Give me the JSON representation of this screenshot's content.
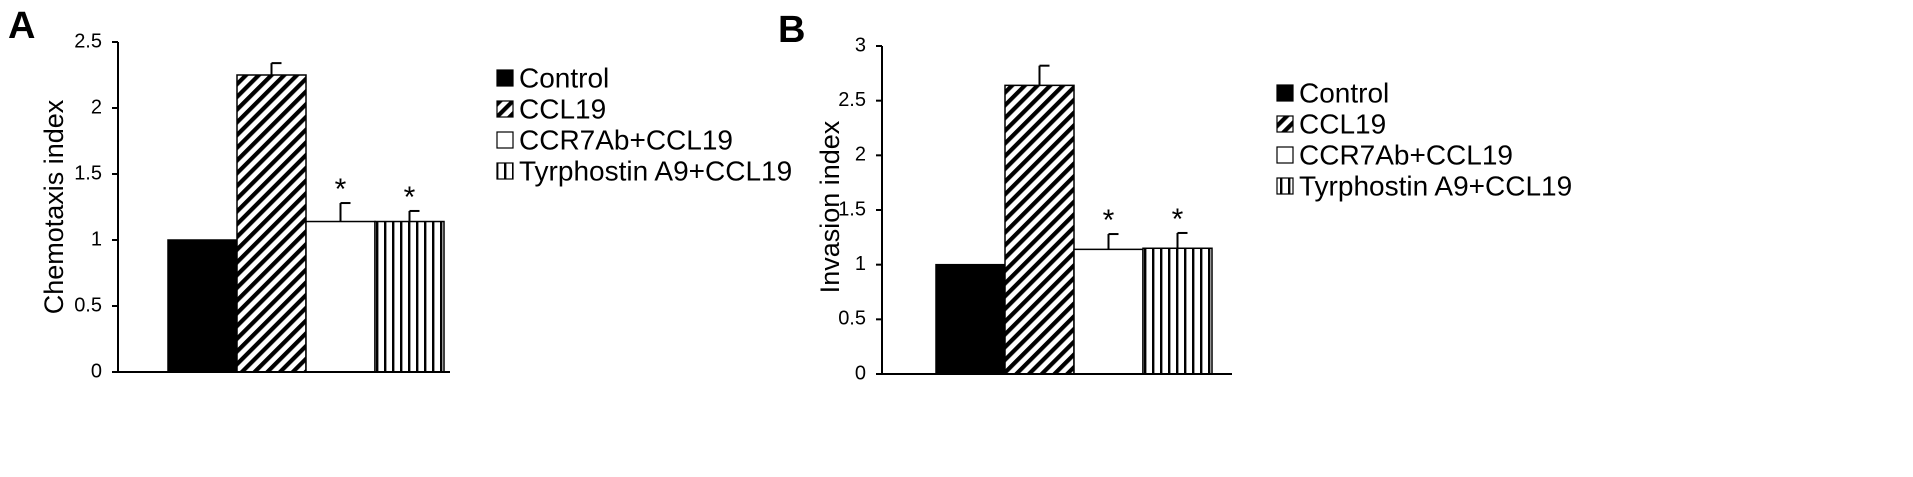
{
  "chart_data": [
    {
      "panel": "A",
      "type": "bar",
      "ylabel": "Chemotaxis index",
      "ylim": [
        0,
        2.5
      ],
      "yticks": [
        "0",
        "0.5",
        "1",
        "1.5",
        "2",
        "2.5"
      ],
      "categories": [
        "Control",
        "CCL19",
        "CCR7Ab+CCL19",
        "Tyrphostin A9+CCL19"
      ],
      "values": [
        1.0,
        2.25,
        1.14,
        1.14
      ],
      "errors": [
        0,
        0.09,
        0.14,
        0.08
      ],
      "significance": [
        "",
        "",
        "*",
        "*"
      ],
      "legend": [
        "Control",
        "CCL19",
        "CCR7Ab+CCL19",
        "Tyrphostin A9+CCL19"
      ],
      "legend_position": "right",
      "grid": false
    },
    {
      "panel": "B",
      "type": "bar",
      "ylabel": "Invasion index",
      "ylim": [
        0,
        3
      ],
      "yticks": [
        "0",
        "0.5",
        "1",
        "1.5",
        "2",
        "2.5",
        "3"
      ],
      "categories": [
        "Control",
        "CCL19",
        "CCR7Ab+CCL19",
        "Tyrphostin A9+CCL19"
      ],
      "values": [
        1.0,
        2.64,
        1.14,
        1.15
      ],
      "errors": [
        0,
        0.18,
        0.14,
        0.14
      ],
      "significance": [
        "",
        "",
        "*",
        "*"
      ],
      "legend": [
        "Control",
        "CCL19",
        "CCR7Ab+CCL19",
        "Tyrphostin A9+CCL19"
      ],
      "legend_position": "right",
      "grid": false
    }
  ],
  "series_styles": [
    "solid-black",
    "diagonal-stripes",
    "white",
    "vertical-stripes"
  ]
}
